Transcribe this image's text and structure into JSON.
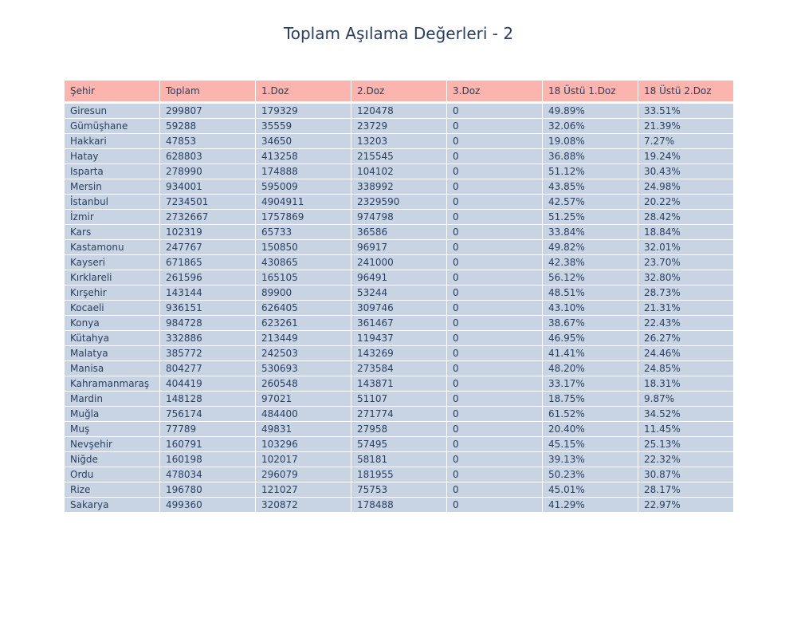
{
  "chart_data": {
    "type": "table",
    "title": "Toplam Aşılama Değerleri - 2",
    "columns": [
      "Şehir",
      "Toplam",
      "1.Doz",
      "2.Doz",
      "3.Doz",
      "18 Üstü 1.Doz",
      "18 Üstü 2.Doz"
    ],
    "rows": [
      [
        "Giresun",
        "299807",
        "179329",
        "120478",
        "0",
        "49.89%",
        "33.51%"
      ],
      [
        "Gümüşhane",
        "59288",
        "35559",
        "23729",
        "0",
        "32.06%",
        "21.39%"
      ],
      [
        "Hakkari",
        "47853",
        "34650",
        "13203",
        "0",
        "19.08%",
        "7.27%"
      ],
      [
        "Hatay",
        "628803",
        "413258",
        "215545",
        "0",
        "36.88%",
        "19.24%"
      ],
      [
        "Isparta",
        "278990",
        "174888",
        "104102",
        "0",
        "51.12%",
        "30.43%"
      ],
      [
        "Mersin",
        "934001",
        "595009",
        "338992",
        "0",
        "43.85%",
        "24.98%"
      ],
      [
        "İstanbul",
        "7234501",
        "4904911",
        "2329590",
        "0",
        "42.57%",
        "20.22%"
      ],
      [
        "İzmir",
        "2732667",
        "1757869",
        "974798",
        "0",
        "51.25%",
        "28.42%"
      ],
      [
        "Kars",
        "102319",
        "65733",
        "36586",
        "0",
        "33.84%",
        "18.84%"
      ],
      [
        "Kastamonu",
        "247767",
        "150850",
        "96917",
        "0",
        "49.82%",
        "32.01%"
      ],
      [
        "Kayseri",
        "671865",
        "430865",
        "241000",
        "0",
        "42.38%",
        "23.70%"
      ],
      [
        "Kırklareli",
        "261596",
        "165105",
        "96491",
        "0",
        "56.12%",
        "32.80%"
      ],
      [
        "Kırşehir",
        "143144",
        "89900",
        "53244",
        "0",
        "48.51%",
        "28.73%"
      ],
      [
        "Kocaeli",
        "936151",
        "626405",
        "309746",
        "0",
        "43.10%",
        "21.31%"
      ],
      [
        "Konya",
        "984728",
        "623261",
        "361467",
        "0",
        "38.67%",
        "22.43%"
      ],
      [
        "Kütahya",
        "332886",
        "213449",
        "119437",
        "0",
        "46.95%",
        "26.27%"
      ],
      [
        "Malatya",
        "385772",
        "242503",
        "143269",
        "0",
        "41.41%",
        "24.46%"
      ],
      [
        "Manisa",
        "804277",
        "530693",
        "273584",
        "0",
        "48.20%",
        "24.85%"
      ],
      [
        "Kahramanmaraş",
        "404419",
        "260548",
        "143871",
        "0",
        "33.17%",
        "18.31%"
      ],
      [
        "Mardin",
        "148128",
        "97021",
        "51107",
        "0",
        "18.75%",
        "9.87%"
      ],
      [
        "Muğla",
        "756174",
        "484400",
        "271774",
        "0",
        "61.52%",
        "34.52%"
      ],
      [
        "Muş",
        "77789",
        "49831",
        "27958",
        "0",
        "20.40%",
        "11.45%"
      ],
      [
        "Nevşehir",
        "160791",
        "103296",
        "57495",
        "0",
        "45.15%",
        "25.13%"
      ],
      [
        "Niğde",
        "160198",
        "102017",
        "58181",
        "0",
        "39.13%",
        "22.32%"
      ],
      [
        "Ordu",
        "478034",
        "296079",
        "181955",
        "0",
        "50.23%",
        "30.87%"
      ],
      [
        "Rize",
        "196780",
        "121027",
        "75753",
        "0",
        "45.01%",
        "28.17%"
      ],
      [
        "Sakarya",
        "499360",
        "320872",
        "178488",
        "0",
        "41.29%",
        "22.97%"
      ]
    ],
    "header_color": "#fbb4ae",
    "cell_color": "#c8d4e3",
    "text_color": "#2a3f5f"
  }
}
